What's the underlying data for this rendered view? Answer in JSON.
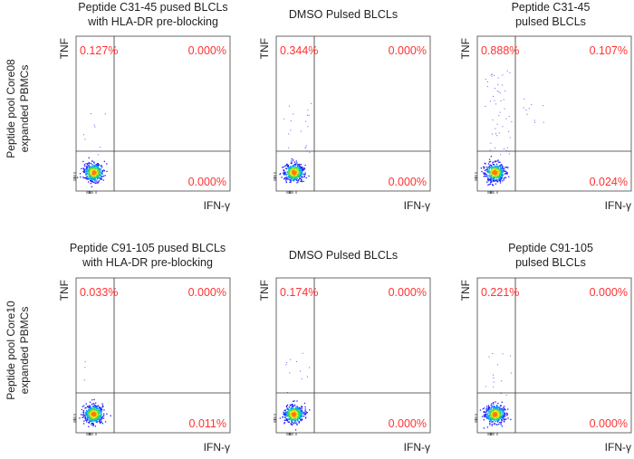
{
  "figure": {
    "rows": [
      {
        "label_line1": "Peptide pool Core08",
        "label_line2": "expanded PBMCs"
      },
      {
        "label_line1": "Peptide pool Core10",
        "label_line2": "expanded PBMCs"
      }
    ],
    "x_axis_label": "IFN-γ",
    "y_axis_label": "TNF",
    "quadrant_color": "#ff3333",
    "density_colors": [
      "#1a1aff",
      "#00a0ff",
      "#33dd55",
      "#f0e020",
      "#ff7a00"
    ]
  },
  "chart_data": [
    {
      "type": "scatter",
      "title_line1": "Peptide C31-45 pused BLCLs",
      "title_line2": "with HLA-DR pre-blocking",
      "xlabel": "IFN-γ",
      "ylabel": "TNF",
      "quadrants": {
        "upper_left": "0.127%",
        "upper_right": "0.000%",
        "lower_right": "0.000%"
      },
      "scatter_extent": 0.15
    },
    {
      "type": "scatter",
      "title_line1": "",
      "title_line2": "DMSO Pulsed BLCLs",
      "xlabel": "IFN-γ",
      "ylabel": "TNF",
      "quadrants": {
        "upper_left": "0.344%",
        "upper_right": "0.000%",
        "lower_right": "0.000%"
      },
      "scatter_extent": 0.35
    },
    {
      "type": "scatter",
      "title_line1": "Peptide C31-45",
      "title_line2": "pulsed BLCLs",
      "xlabel": "IFN-γ",
      "ylabel": "TNF",
      "quadrants": {
        "upper_left": "0.888%",
        "upper_right": "0.107%",
        "lower_right": "0.024%"
      },
      "scatter_extent": 0.9
    },
    {
      "type": "scatter",
      "title_line1": "Peptide C91-105 pused BLCLs",
      "title_line2": "with HLA-DR pre-blocking",
      "xlabel": "IFN-γ",
      "ylabel": "TNF",
      "quadrants": {
        "upper_left": "0.033%",
        "upper_right": "0.000%",
        "lower_right": "0.011%"
      },
      "scatter_extent": 0.05
    },
    {
      "type": "scatter",
      "title_line1": "",
      "title_line2": "DMSO Pulsed BLCLs",
      "xlabel": "IFN-γ",
      "ylabel": "TNF",
      "quadrants": {
        "upper_left": "0.174%",
        "upper_right": "0.000%",
        "lower_right": "0.000%"
      },
      "scatter_extent": 0.2
    },
    {
      "type": "scatter",
      "title_line1": "Peptide C91-105",
      "title_line2": "pulsed BLCLs",
      "xlabel": "IFN-γ",
      "ylabel": "TNF",
      "quadrants": {
        "upper_left": "0.221%",
        "upper_right": "0.000%",
        "lower_right": "0.000%"
      },
      "scatter_extent": 0.25
    }
  ]
}
